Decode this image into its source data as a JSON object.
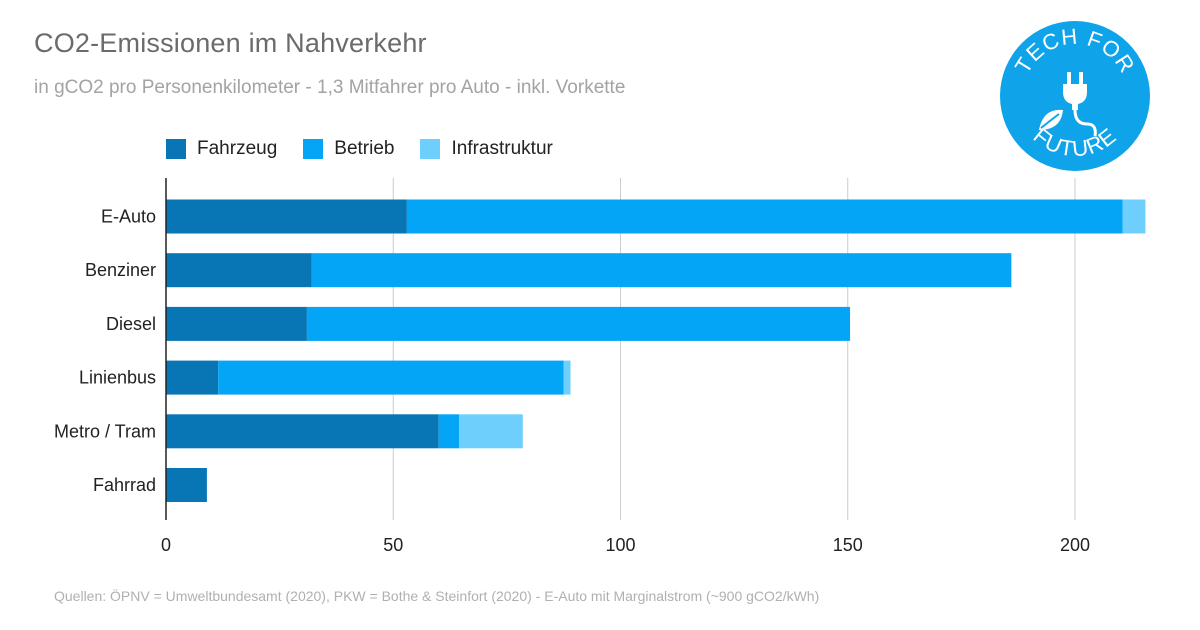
{
  "title": "CO2-Emissionen im Nahverkehr",
  "subtitle": "in gCO2 pro Personenkilometer - 1,3 Mitfahrer pro Auto - inkl. Vorkette",
  "source": "Quellen: ÖPNV = Umweltbundesamt (2020), PKW = Bothe & Steinfort (2020) - E-Auto mit Marginalstrom (~900 gCO2/kWh)",
  "logo": {
    "top_text": "TECH FOR",
    "bottom_text": "FUTURE",
    "color": "#0fa3ea",
    "icon": "plug-leaf-icon"
  },
  "colors": {
    "fahrzeug": "#0875b5",
    "betrieb": "#04a5f6",
    "infrastruktur": "#6fcffc",
    "grid": "#cccccc",
    "axis": "#222222"
  },
  "legend": [
    "Fahrzeug",
    "Betrieb",
    "Infrastruktur"
  ],
  "chart_data": {
    "type": "bar",
    "orientation": "horizontal",
    "stacked": true,
    "categories": [
      "E-Auto",
      "Benziner",
      "Diesel",
      "Linienbus",
      "Metro / Tram",
      "Fahrrad"
    ],
    "series": [
      {
        "name": "Fahrzeug",
        "values": [
          53,
          32,
          31,
          11.5,
          60,
          9
        ]
      },
      {
        "name": "Betrieb",
        "values": [
          157.5,
          154,
          119.5,
          76,
          4.5,
          0
        ]
      },
      {
        "name": "Infrastruktur",
        "values": [
          5,
          0,
          0,
          1.5,
          14,
          0
        ]
      }
    ],
    "xlim": [
      0,
      215
    ],
    "xticks": [
      0,
      50,
      100,
      150,
      200
    ],
    "grid": true,
    "legend_position": "top-left"
  }
}
